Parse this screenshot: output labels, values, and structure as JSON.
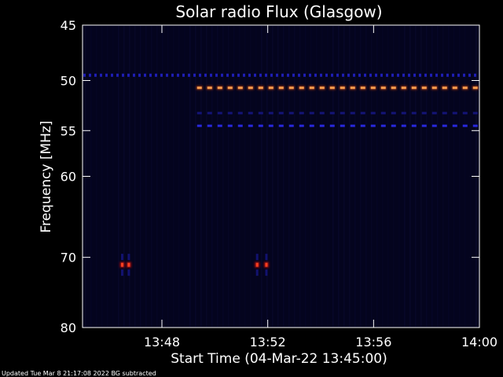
{
  "chart_data": {
    "type": "heatmap",
    "title": "Solar radio Flux (Glasgow)",
    "xlabel": "Start Time (04-Mar-22 13:45:00)",
    "ylabel": "Frequency [MHz]",
    "footer": "Updated Tue Mar  8 21:17:08 2022   BG subtracted",
    "xlim_minutes": [
      0,
      15
    ],
    "ylim_mhz": [
      45,
      80
    ],
    "y_scale": "log",
    "x_ticks": [
      {
        "minutes": 3,
        "label": "13:48"
      },
      {
        "minutes": 7,
        "label": "13:52"
      },
      {
        "minutes": 11,
        "label": "13:56"
      },
      {
        "minutes": 15,
        "label": "14:00"
      }
    ],
    "y_ticks": [
      {
        "mhz": 45,
        "label": "45"
      },
      {
        "mhz": 50,
        "label": "50"
      },
      {
        "mhz": 55,
        "label": "55"
      },
      {
        "mhz": 60,
        "label": "60"
      },
      {
        "mhz": 70,
        "label": "70"
      },
      {
        "mhz": 80,
        "label": "80"
      }
    ],
    "emission_bands": [
      {
        "freq_mhz": 49.5,
        "t_start_min": 0,
        "t_end_min": 15,
        "intensity": "weak",
        "color": "#1e1eb4"
      },
      {
        "freq_mhz": 50.7,
        "t_start_min": 4.3,
        "t_end_min": 15,
        "intensity": "strong",
        "color": "#ffa050"
      },
      {
        "freq_mhz": 53.2,
        "t_start_min": 4.3,
        "t_end_min": 15,
        "intensity": "faint",
        "color": "#141478"
      },
      {
        "freq_mhz": 54.5,
        "t_start_min": 4.3,
        "t_end_min": 15,
        "intensity": "medium",
        "color": "#2828dc"
      }
    ],
    "bursts": [
      {
        "t_min": 1.5,
        "freq_mhz": 71.0,
        "intensity": "strong",
        "color": "#ff4020"
      },
      {
        "t_min": 1.75,
        "freq_mhz": 71.0,
        "intensity": "strong",
        "color": "#ff4020"
      },
      {
        "t_min": 6.6,
        "freq_mhz": 71.0,
        "intensity": "strong",
        "color": "#ff4020"
      },
      {
        "t_min": 6.95,
        "freq_mhz": 71.0,
        "intensity": "strong",
        "color": "#ff4020"
      }
    ],
    "colors": {
      "background": "#000000",
      "plot_background": "#04041e",
      "axes": "#ffffff",
      "weak_signal": "#1e1eb4",
      "strong_signal": "#ffa050",
      "burst": "#ff4020"
    }
  }
}
